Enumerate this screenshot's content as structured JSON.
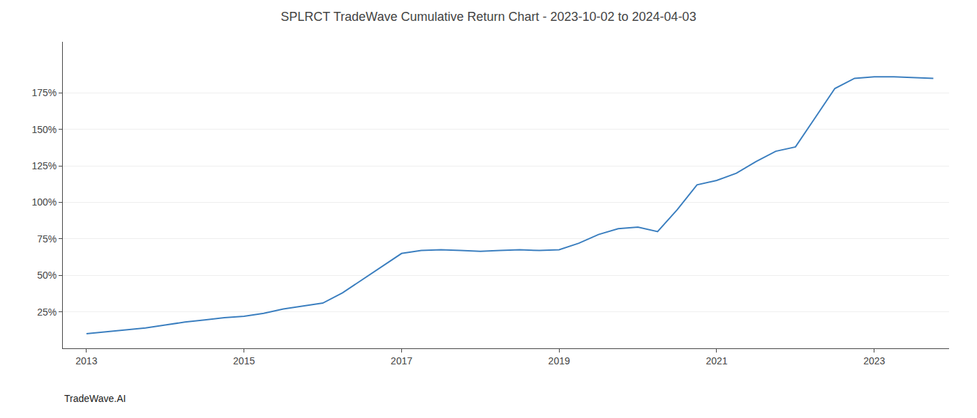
{
  "chart_data": {
    "type": "line",
    "title": "SPLRCT TradeWave Cumulative Return Chart - 2023-10-02 to 2024-04-03",
    "annotations": [
      "TradeWave.AI"
    ],
    "x": [
      2013.0,
      2013.2,
      2013.5,
      2013.75,
      2014.0,
      2014.25,
      2014.5,
      2014.75,
      2015.0,
      2015.25,
      2015.5,
      2015.75,
      2016.0,
      2016.25,
      2016.5,
      2016.75,
      2017.0,
      2017.25,
      2017.5,
      2017.75,
      2018.0,
      2018.25,
      2018.5,
      2018.75,
      2019.0,
      2019.25,
      2019.5,
      2019.75,
      2020.0,
      2020.25,
      2020.5,
      2020.75,
      2021.0,
      2021.25,
      2021.5,
      2021.75,
      2022.0,
      2022.25,
      2022.5,
      2022.75,
      2023.0,
      2023.25,
      2023.5,
      2023.75
    ],
    "values": [
      10.0,
      11.0,
      12.5,
      14.0,
      16.0,
      18.0,
      19.5,
      21.0,
      22.0,
      24.0,
      27.0,
      29.0,
      31.0,
      38.0,
      47.0,
      56.0,
      65.0,
      67.0,
      67.5,
      67.0,
      66.5,
      67.0,
      67.5,
      67.0,
      67.5,
      72.0,
      78.0,
      82.0,
      83.0,
      80.0,
      95.0,
      112.0,
      115.0,
      120.0,
      128.0,
      135.0,
      138.0,
      158.0,
      178.0,
      185.0,
      186.0,
      186.0,
      185.5,
      185.0
    ],
    "color": "#3a7ebf",
    "xlim": [
      2012.7,
      2023.95
    ],
    "ylim": [
      0,
      210
    ],
    "xticks": [
      2013,
      2015,
      2017,
      2019,
      2021,
      2023
    ],
    "yticks": [
      {
        "value": 25,
        "label": "25%"
      },
      {
        "value": 50,
        "label": "50%"
      },
      {
        "value": 75,
        "label": "75%"
      },
      {
        "value": 100,
        "label": "100%"
      },
      {
        "value": 125,
        "label": "125%"
      },
      {
        "value": 150,
        "label": "150%"
      },
      {
        "value": 175,
        "label": "175%"
      }
    ],
    "grid": "y"
  }
}
